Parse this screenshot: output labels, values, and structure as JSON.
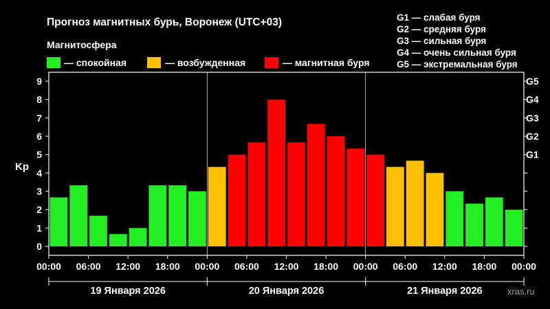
{
  "header": {
    "title": "Прогноз магнитных бурь, Воронеж (UTC+03)",
    "subtitle": "Магнитосфера"
  },
  "legend": [
    {
      "label": "— спокойная",
      "color": "#22ee22"
    },
    {
      "label": "— возбужденная",
      "color": "#ffc000"
    },
    {
      "label": "— магнитная буря",
      "color": "#ff0000"
    }
  ],
  "g_scale": [
    "G1 — слабая буря",
    "G2 — средняя буря",
    "G3 — сильная буря",
    "G4 — очень сильная буря",
    "G5 — экстремальная буря"
  ],
  "watermark": "xras.ru",
  "chart_data": {
    "type": "bar",
    "ylabel": "Kp",
    "ylim": [
      0,
      9
    ],
    "y_ticks": [
      "0",
      "1",
      "2",
      "3",
      "4",
      "5",
      "6",
      "7",
      "8",
      "9"
    ],
    "right_ticks": [
      {
        "value": 5,
        "label": "G1"
      },
      {
        "value": 6,
        "label": "G2"
      },
      {
        "value": 7,
        "label": "G3"
      },
      {
        "value": 8,
        "label": "G4"
      },
      {
        "value": 9,
        "label": "G5"
      }
    ],
    "x_ticks": [
      "00:00",
      "06:00",
      "12:00",
      "18:00",
      "00:00",
      "06:00",
      "12:00",
      "18:00",
      "00:00",
      "06:00",
      "12:00",
      "18:00",
      "00:00"
    ],
    "days": [
      "19 Января 2026",
      "20 Января 2026",
      "21 Января 2026"
    ],
    "values": [
      2.67,
      3.33,
      1.67,
      0.67,
      1.0,
      3.33,
      3.33,
      3.0,
      4.33,
      5.0,
      5.67,
      8.0,
      5.67,
      6.67,
      6.0,
      5.33,
      5.0,
      4.33,
      4.67,
      4.0,
      3.0,
      2.33,
      2.67,
      2.0
    ],
    "colors": {
      "quiet": "#22ee22",
      "active": "#ffc000",
      "storm": "#ff0000"
    },
    "grid": false,
    "day_separators": true
  }
}
